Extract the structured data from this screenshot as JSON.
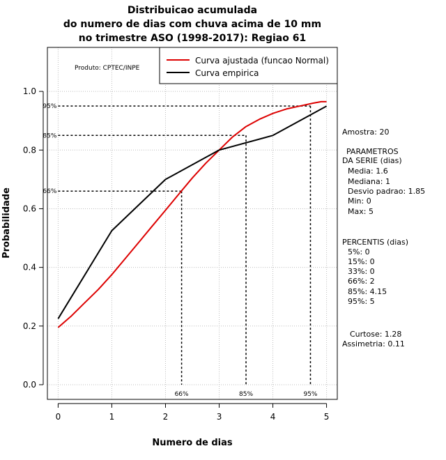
{
  "chart_data": {
    "type": "line",
    "title": [
      "Distribuicao acumulada",
      "do numero de dias com chuva acima de 10 mm",
      "no trimestre ASO (1998-2017): Regiao 61"
    ],
    "xlabel": "Numero de dias",
    "ylabel": "Probabilidade",
    "xlim": [
      -0.2,
      5.2
    ],
    "ylim": [
      -0.05,
      1.15
    ],
    "x_ticks": [
      0,
      1,
      2,
      3,
      4,
      5
    ],
    "y_ticks": [
      0.0,
      0.2,
      0.4,
      0.6,
      0.8,
      1.0
    ],
    "x_tick_labels": [
      "0",
      "1",
      "2",
      "3",
      "4",
      "5"
    ],
    "y_tick_labels": [
      "0.0",
      "0.2",
      "0.4",
      "0.6",
      "0.8",
      "1.0"
    ],
    "grid": true,
    "legend_position": "top-right",
    "producer_note": "Produto: CPTEC/INPE",
    "series": [
      {
        "name": "Curva ajustada (funcao Normal)",
        "color": "#dd0000",
        "x": [
          0,
          0.25,
          0.5,
          0.75,
          1.0,
          1.25,
          1.5,
          1.75,
          2.0,
          2.25,
          2.5,
          2.75,
          3.0,
          3.25,
          3.5,
          3.75,
          4.0,
          4.25,
          4.5,
          4.75,
          4.9,
          5.0
        ],
        "y": [
          0.195,
          0.235,
          0.28,
          0.325,
          0.375,
          0.43,
          0.485,
          0.54,
          0.595,
          0.65,
          0.705,
          0.755,
          0.8,
          0.845,
          0.88,
          0.905,
          0.925,
          0.94,
          0.95,
          0.96,
          0.965,
          0.965
        ]
      },
      {
        "name": "Curva empirica",
        "color": "#000000",
        "x": [
          0,
          1,
          2,
          3,
          4,
          5
        ],
        "y": [
          0.225,
          0.525,
          0.7,
          0.8,
          0.85,
          0.95
        ]
      }
    ],
    "percentile_markers": [
      {
        "label_y": "66%",
        "label_x": "66%",
        "prob": 0.66,
        "x": 2.3
      },
      {
        "label_y": "85%",
        "label_x": "85%",
        "prob": 0.85,
        "x": 3.5
      },
      {
        "label_y": "95%",
        "label_x": "95%",
        "prob": 0.95,
        "x": 4.7
      }
    ]
  },
  "stats": {
    "amostra": "Amostra: 20",
    "parametros_title": "PARAMETROS",
    "parametros_sub": "DA SERIE (dias)",
    "media": "Media: 1.6",
    "mediana": "Mediana: 1",
    "desvio": "Desvio padrao: 1.85",
    "min": "Min: 0",
    "max": "Max: 5",
    "percentis_title": "PERCENTIS (dias)",
    "p5": "5%: 0",
    "p15": "15%: 0",
    "p33": "33%: 0",
    "p66": "66%: 2",
    "p85": "85%: 4.15",
    "p95": "95%: 5",
    "curtose": "Curtose: 1.28",
    "assimetria": "Assimetria: 0.11"
  }
}
